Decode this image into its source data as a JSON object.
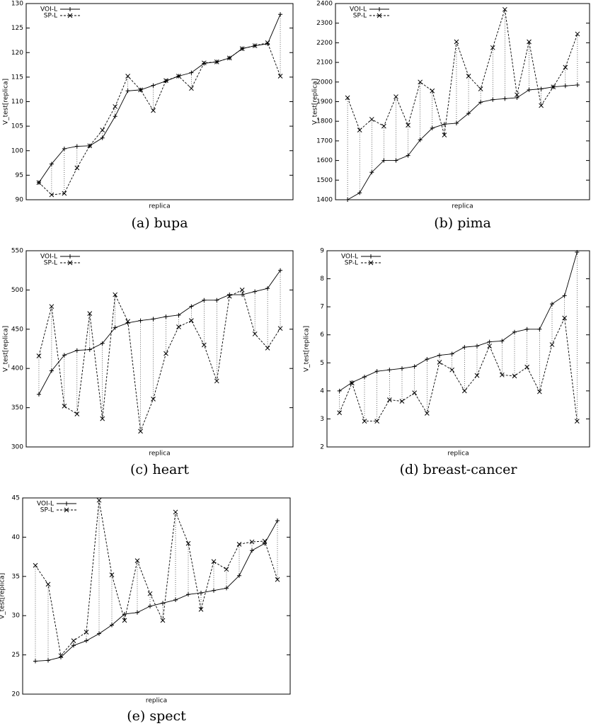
{
  "chart_data": [
    {
      "type": "line",
      "title": "(a) bupa",
      "xlabel": "replica",
      "ylabel": "V_test[replica]",
      "categories": [
        null,
        null,
        null,
        null,
        null,
        null,
        null,
        null,
        null,
        null,
        null,
        null,
        null,
        null,
        null,
        null,
        null,
        null,
        null,
        null
      ],
      "ylim": [
        90,
        130
      ],
      "yticks": [
        90,
        95,
        100,
        105,
        110,
        115,
        120,
        125,
        130
      ],
      "series": [
        {
          "name": "VOI-L",
          "color": "#000000",
          "dash": "solid",
          "marker": "+",
          "values": [
            93.5,
            97.3,
            100.4,
            100.9,
            101.0,
            102.6,
            107.0,
            112.2,
            112.4,
            113.3,
            114.2,
            115.2,
            115.9,
            117.8,
            118.1,
            118.9,
            120.8,
            121.4,
            121.8,
            127.8
          ]
        },
        {
          "name": "SP-L",
          "color": "#000000",
          "dash": "dashed",
          "marker": "x",
          "values": [
            93.5,
            91.0,
            91.3,
            96.5,
            101.0,
            104.2,
            109.0,
            115.2,
            112.4,
            108.2,
            114.3,
            115.2,
            112.7,
            117.9,
            118.1,
            118.9,
            120.8,
            121.4,
            122.0,
            115.2
          ]
        }
      ]
    },
    {
      "type": "line",
      "title": "(b) pima",
      "xlabel": "replica",
      "ylabel": "V_test[replica]",
      "categories": [
        null,
        null,
        null,
        null,
        null,
        null,
        null,
        null,
        null,
        null,
        null,
        null,
        null,
        null,
        null,
        null,
        null,
        null,
        null,
        null
      ],
      "ylim": [
        1400,
        2400
      ],
      "yticks": [
        1400,
        1500,
        1600,
        1700,
        1800,
        1900,
        2000,
        2100,
        2200,
        2300,
        2400
      ],
      "series": [
        {
          "name": "VOI-L",
          "color": "#000000",
          "dash": "solid",
          "marker": "+",
          "values": [
            1400,
            1435,
            1540,
            1600,
            1600,
            1625,
            1705,
            1765,
            1785,
            1790,
            1840,
            1897,
            1910,
            1915,
            1920,
            1960,
            1965,
            1975,
            1980,
            1985
          ]
        },
        {
          "name": "SP-L",
          "color": "#000000",
          "dash": "dashed",
          "marker": "x",
          "values": [
            1920,
            1755,
            1810,
            1775,
            1925,
            1780,
            2000,
            1955,
            1730,
            2205,
            2030,
            1965,
            2175,
            2370,
            1935,
            2205,
            1880,
            1975,
            2075,
            2245
          ]
        }
      ]
    },
    {
      "type": "line",
      "title": "(c) heart",
      "xlabel": "replica",
      "ylabel": "V_test[replica]",
      "categories": [
        null,
        null,
        null,
        null,
        null,
        null,
        null,
        null,
        null,
        null,
        null,
        null,
        null,
        null,
        null,
        null,
        null,
        null,
        null,
        null
      ],
      "ylim": [
        300,
        550
      ],
      "yticks": [
        300,
        350,
        400,
        450,
        500,
        550
      ],
      "series": [
        {
          "name": "VOI-L",
          "color": "#000000",
          "dash": "solid",
          "marker": "+",
          "values": [
            367,
            397,
            417,
            423,
            424,
            432,
            452,
            458,
            461,
            463,
            466,
            468,
            479,
            487,
            487,
            494,
            494,
            498,
            502,
            525
          ]
        },
        {
          "name": "SP-L",
          "color": "#000000",
          "dash": "dashed",
          "marker": "x",
          "values": [
            416,
            479,
            352,
            342,
            470,
            336,
            494,
            460,
            320,
            361,
            419,
            453,
            461,
            430,
            384,
            492,
            500,
            444,
            426,
            451
          ]
        }
      ]
    },
    {
      "type": "line",
      "title": "(d) breast-cancer",
      "xlabel": "replica",
      "ylabel": "V_test[replica]",
      "categories": [
        null,
        null,
        null,
        null,
        null,
        null,
        null,
        null,
        null,
        null,
        null,
        null,
        null,
        null,
        null,
        null,
        null,
        null,
        null,
        null
      ],
      "ylim": [
        2,
        9
      ],
      "yticks": [
        2,
        3,
        4,
        5,
        6,
        7,
        8,
        9
      ],
      "series": [
        {
          "name": "VOI-L",
          "color": "#000000",
          "dash": "solid",
          "marker": "+",
          "values": [
            4.0,
            4.3,
            4.5,
            4.7,
            4.75,
            4.8,
            4.87,
            5.13,
            5.27,
            5.32,
            5.56,
            5.6,
            5.75,
            5.78,
            6.1,
            6.2,
            6.2,
            7.1,
            7.4,
            8.95
          ]
        },
        {
          "name": "SP-L",
          "color": "#000000",
          "dash": "dashed",
          "marker": "x",
          "values": [
            3.22,
            4.28,
            2.92,
            2.92,
            3.68,
            3.63,
            3.93,
            3.2,
            5.02,
            4.75,
            4.0,
            4.55,
            5.6,
            4.57,
            4.53,
            4.85,
            3.97,
            5.65,
            6.6,
            2.92
          ]
        }
      ]
    },
    {
      "type": "line",
      "title": "(e) spect",
      "xlabel": "replica",
      "ylabel": "V_test[replica]",
      "categories": [
        null,
        null,
        null,
        null,
        null,
        null,
        null,
        null,
        null,
        null,
        null,
        null,
        null,
        null,
        null,
        null,
        null,
        null,
        null,
        null
      ],
      "ylim": [
        20,
        45
      ],
      "yticks": [
        20,
        25,
        30,
        35,
        40,
        45
      ],
      "series": [
        {
          "name": "VOI-L",
          "color": "#000000",
          "dash": "solid",
          "marker": "+",
          "values": [
            24.2,
            24.3,
            24.7,
            26.2,
            26.8,
            27.7,
            28.8,
            30.2,
            30.4,
            31.2,
            31.6,
            32.0,
            32.7,
            32.9,
            33.2,
            33.5,
            35.1,
            38.3,
            39.2,
            42.1
          ]
        },
        {
          "name": "SP-L",
          "color": "#000000",
          "dash": "dashed",
          "marker": "x",
          "values": [
            36.4,
            34.0,
            24.9,
            26.8,
            27.9,
            44.7,
            35.2,
            29.4,
            37.0,
            32.8,
            29.4,
            43.2,
            39.2,
            30.8,
            36.9,
            35.9,
            39.1,
            39.4,
            39.5,
            34.6
          ]
        }
      ]
    }
  ]
}
